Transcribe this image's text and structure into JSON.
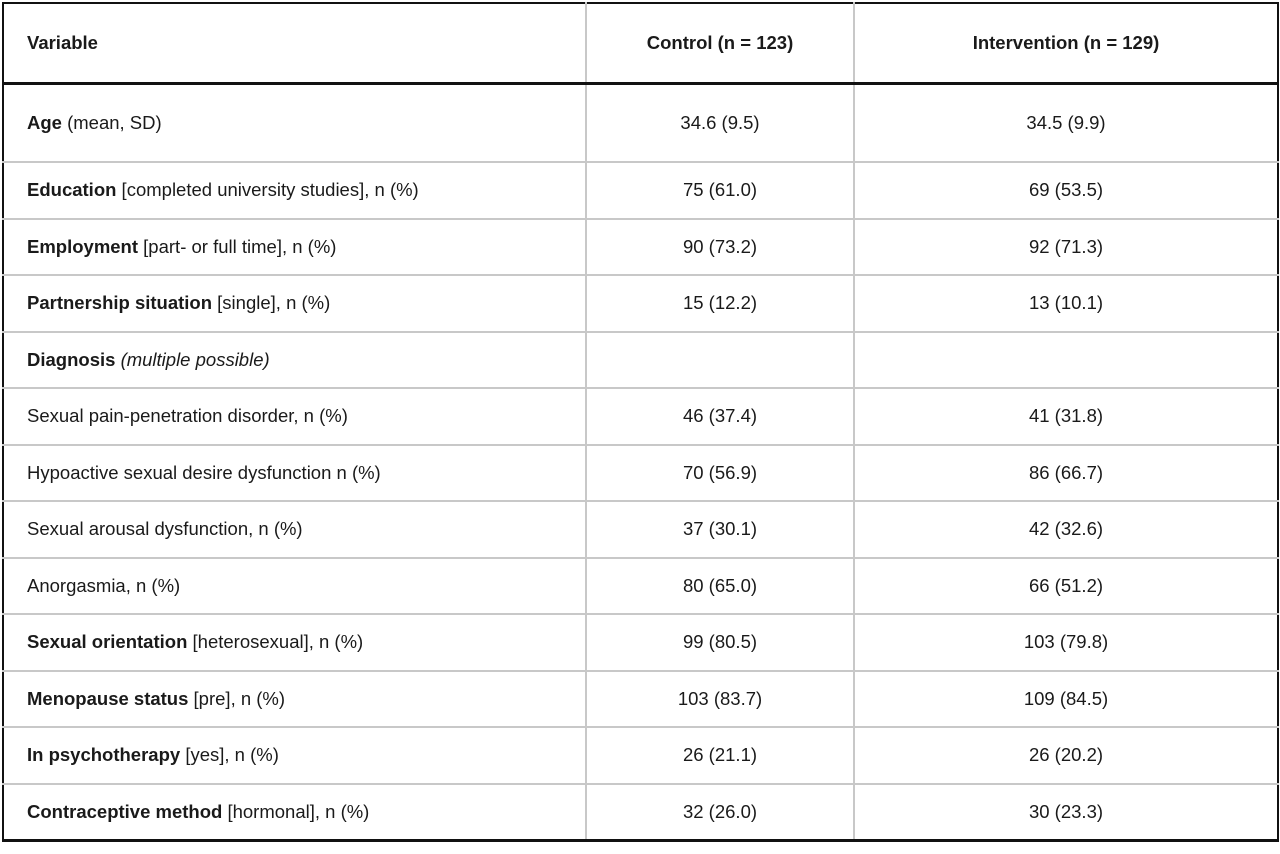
{
  "table": {
    "headers": {
      "variable": "Variable",
      "control": "Control (n = 123)",
      "intervention": "Intervention (n = 129)"
    },
    "rows": [
      {
        "bold": "Age",
        "rest": " (mean, SD)",
        "italic": "",
        "control": "34.6 (9.5)",
        "intervention": "34.5 (9.9)"
      },
      {
        "bold": "Education",
        "rest": " [completed university studies], n (%)",
        "italic": "",
        "control": "75 (61.0)",
        "intervention": "69 (53.5)"
      },
      {
        "bold": "Employment",
        "rest": " [part- or full time], n (%)",
        "italic": "",
        "control": "90 (73.2)",
        "intervention": "92 (71.3)"
      },
      {
        "bold": "Partnership situation",
        "rest": " [single], n (%)",
        "italic": "",
        "control": "15 (12.2)",
        "intervention": "13 (10.1)"
      },
      {
        "bold": "Diagnosis",
        "rest": " ",
        "italic": "(multiple possible)",
        "control": "",
        "intervention": ""
      },
      {
        "bold": "",
        "rest": "Sexual pain-penetration disorder, n (%)",
        "italic": "",
        "control": "46 (37.4)",
        "intervention": "41 (31.8)"
      },
      {
        "bold": "",
        "rest": "Hypoactive sexual desire dysfunction n (%)",
        "italic": "",
        "control": "70 (56.9)",
        "intervention": "86 (66.7)"
      },
      {
        "bold": "",
        "rest": "Sexual arousal dysfunction, n (%)",
        "italic": "",
        "control": "37 (30.1)",
        "intervention": "42 (32.6)"
      },
      {
        "bold": "",
        "rest": "Anorgasmia, n (%)",
        "italic": "",
        "control": "80 (65.0)",
        "intervention": "66 (51.2)"
      },
      {
        "bold": "Sexual orientation",
        "rest": " [heterosexual], n (%)",
        "italic": "",
        "control": "99 (80.5)",
        "intervention": "103 (79.8)"
      },
      {
        "bold": "Menopause status",
        "rest": " [pre], n (%)",
        "italic": "",
        "control": "103 (83.7)",
        "intervention": "109 (84.5)"
      },
      {
        "bold": "In psychotherapy",
        "rest": " [yes], n (%)",
        "italic": "",
        "control": "26 (21.1)",
        "intervention": "26 (20.2)"
      },
      {
        "bold": "Contraceptive method",
        "rest": " [hormonal], n (%)",
        "italic": "",
        "control": "32 (26.0)",
        "intervention": "30 (23.3)"
      }
    ]
  }
}
